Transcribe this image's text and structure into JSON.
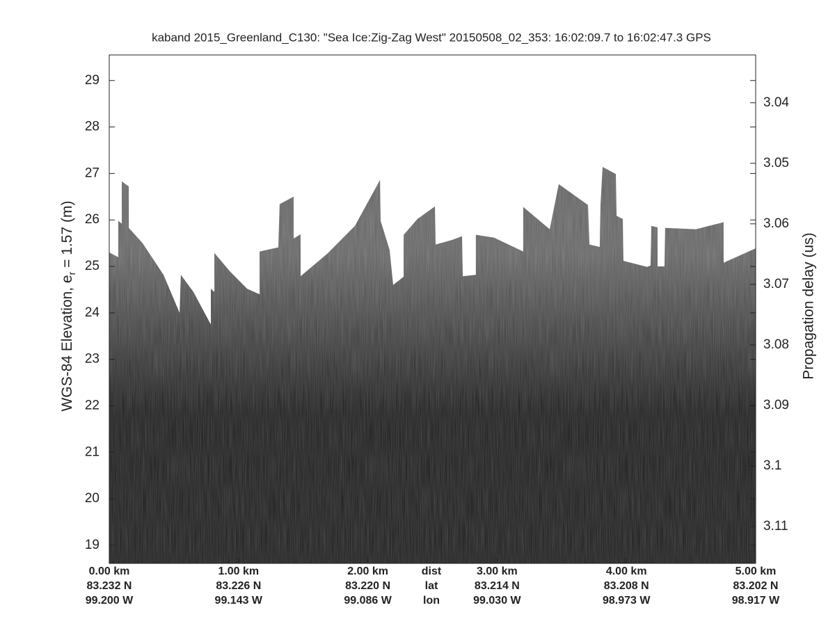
{
  "chart_data": {
    "type": "echogram",
    "title": "kaband 2015_Greenland_C130: \"Sea Ice:Zig-Zag West\"  20150508_02_353: 16:02:09.7 to 16:02:47.3 GPS",
    "ylabel": {
      "main": "WGS-84 Elevation, e",
      "sub": "r",
      "rest": " = 1.57 (m)"
    },
    "y2label": "Propagation delay (us)",
    "xlim": [
      0,
      5
    ],
    "xticks": [
      {
        "value": 0,
        "label": "0.00 km"
      },
      {
        "value": 1,
        "label": "1.00 km"
      },
      {
        "value": 2,
        "label": "2.00 km"
      },
      {
        "value": 3,
        "label": "3.00 km"
      },
      {
        "value": 4,
        "label": "4.00 km"
      },
      {
        "value": 5,
        "label": "5.00 km"
      }
    ],
    "lat_labels": [
      "83.232 N",
      "83.226 N",
      "83.220 N",
      "83.214 N",
      "83.208 N",
      "83.202 N"
    ],
    "lon_labels": [
      "99.200 W",
      "99.143 W",
      "99.086 W",
      "99.030 W",
      "98.973 W",
      "98.917 W"
    ],
    "row_labels": [
      "dist",
      "lat",
      "lon"
    ],
    "ylim": [
      18.61,
      29.55
    ],
    "yticks": [
      19,
      20,
      21,
      22,
      23,
      24,
      25,
      26,
      27,
      28,
      29
    ],
    "y2lim": [
      3.1161,
      3.0321
    ],
    "y2ticks": [
      3.04,
      3.05,
      3.06,
      3.07,
      3.08,
      3.09,
      3.1,
      3.11
    ],
    "colormap": [
      "#626262",
      "#1b1b1b"
    ],
    "surface": {
      "x": [
        0,
        0.07,
        0.07,
        0.097,
        0.097,
        0.151,
        0.151,
        0.258,
        0.42,
        0.544,
        0.554,
        0.651,
        0.786,
        0.786,
        0.813,
        0.813,
        0.931,
        1.066,
        1.163,
        1.163,
        1.308,
        1.318,
        1.426,
        1.426,
        1.48,
        1.48,
        1.685,
        1.9,
        2.094,
        2.099,
        2.169,
        2.196,
        2.277,
        2.277,
        2.384,
        2.519,
        2.524,
        2.653,
        2.729,
        2.734,
        2.836,
        2.836,
        2.976,
        3.202,
        3.202,
        3.407,
        3.477,
        3.703,
        3.714,
        3.794,
        3.8,
        3.816,
        3.918,
        3.924,
        3.972,
        3.977,
        4.16,
        4.187,
        4.193,
        4.241,
        4.241,
        4.295,
        4.3,
        4.537,
        4.752,
        4.752,
        5.0
      ],
      "values": [
        25.3,
        25.2,
        25.98,
        25.92,
        26.83,
        26.72,
        25.83,
        25.5,
        24.82,
        24.0,
        24.82,
        24.45,
        23.75,
        24.52,
        24.45,
        25.29,
        24.9,
        24.52,
        24.4,
        25.32,
        25.41,
        26.34,
        26.5,
        25.6,
        25.69,
        24.79,
        25.27,
        25.87,
        26.86,
        25.98,
        25.35,
        24.6,
        24.78,
        25.68,
        26.02,
        26.29,
        25.47,
        25.57,
        25.65,
        24.79,
        24.82,
        25.68,
        25.62,
        25.32,
        26.28,
        25.8,
        26.77,
        26.32,
        25.47,
        25.42,
        26.32,
        27.14,
        26.99,
        26.09,
        26.02,
        25.12,
        24.99,
        25.02,
        25.87,
        25.84,
        25.0,
        25.0,
        25.83,
        25.8,
        25.95,
        25.08,
        25.39
      ]
    }
  }
}
